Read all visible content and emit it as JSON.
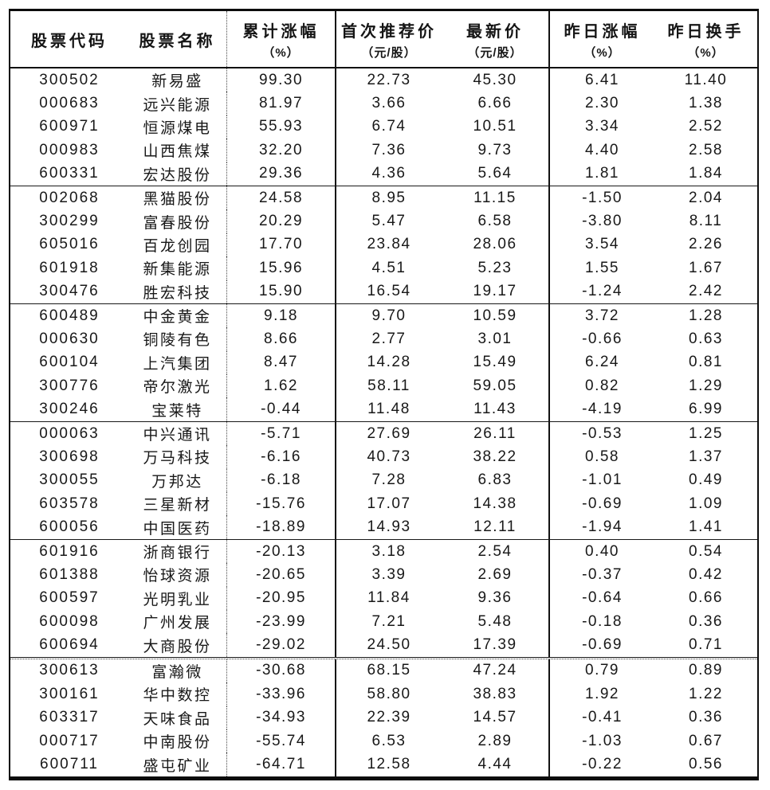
{
  "table": {
    "columns": [
      {
        "label": "股票代码",
        "unit": ""
      },
      {
        "label": "股票名称",
        "unit": ""
      },
      {
        "label": "累计涨幅",
        "unit": "（%）"
      },
      {
        "label": "首次推荐价",
        "unit": "（元/股）"
      },
      {
        "label": "最新价",
        "unit": "（元/股）"
      },
      {
        "label": "昨日涨幅",
        "unit": "（%）"
      },
      {
        "label": "昨日换手",
        "unit": "（%）"
      }
    ],
    "groups": [
      {
        "rows": [
          [
            "300502",
            "新易盛",
            "99.30",
            "22.73",
            "45.30",
            "6.41",
            "11.40"
          ],
          [
            "000683",
            "远兴能源",
            "81.97",
            "3.66",
            "6.66",
            "2.30",
            "1.38"
          ],
          [
            "600971",
            "恒源煤电",
            "55.93",
            "6.74",
            "10.51",
            "3.34",
            "2.52"
          ],
          [
            "000983",
            "山西焦煤",
            "32.20",
            "7.36",
            "9.73",
            "4.40",
            "2.58"
          ],
          [
            "600331",
            "宏达股份",
            "29.36",
            "4.36",
            "5.64",
            "1.81",
            "1.84"
          ]
        ]
      },
      {
        "rows": [
          [
            "002068",
            "黑猫股份",
            "24.58",
            "8.95",
            "11.15",
            "-1.50",
            "2.04"
          ],
          [
            "300299",
            "富春股份",
            "20.29",
            "5.47",
            "6.58",
            "-3.80",
            "8.11"
          ],
          [
            "605016",
            "百龙创园",
            "17.70",
            "23.84",
            "28.06",
            "3.54",
            "2.26"
          ],
          [
            "601918",
            "新集能源",
            "15.96",
            "4.51",
            "5.23",
            "1.55",
            "1.67"
          ],
          [
            "300476",
            "胜宏科技",
            "15.90",
            "16.54",
            "19.17",
            "-1.24",
            "2.42"
          ]
        ]
      },
      {
        "rows": [
          [
            "600489",
            "中金黄金",
            "9.18",
            "9.70",
            "10.59",
            "3.72",
            "1.28"
          ],
          [
            "000630",
            "铜陵有色",
            "8.66",
            "2.77",
            "3.01",
            "-0.66",
            "0.63"
          ],
          [
            "600104",
            "上汽集团",
            "8.47",
            "14.28",
            "15.49",
            "6.24",
            "0.81"
          ],
          [
            "300776",
            "帝尔激光",
            "1.62",
            "58.11",
            "59.05",
            "0.82",
            "1.29"
          ],
          [
            "300246",
            "宝莱特",
            "-0.44",
            "11.48",
            "11.43",
            "-4.19",
            "6.99"
          ]
        ]
      },
      {
        "rows": [
          [
            "000063",
            "中兴通讯",
            "-5.71",
            "27.69",
            "26.11",
            "-0.53",
            "1.25"
          ],
          [
            "300698",
            "万马科技",
            "-6.16",
            "40.73",
            "38.22",
            "0.58",
            "1.37"
          ],
          [
            "300055",
            "万邦达",
            "-6.18",
            "7.28",
            "6.83",
            "-1.01",
            "0.49"
          ],
          [
            "603578",
            "三星新材",
            "-15.76",
            "17.07",
            "14.38",
            "-0.69",
            "1.09"
          ],
          [
            "600056",
            "中国医药",
            "-18.89",
            "14.93",
            "12.11",
            "-1.94",
            "1.41"
          ]
        ]
      },
      {
        "rows": [
          [
            "601916",
            "浙商银行",
            "-20.13",
            "3.18",
            "2.54",
            "0.40",
            "0.54"
          ],
          [
            "601388",
            "怡球资源",
            "-20.65",
            "3.39",
            "2.69",
            "-0.37",
            "0.42"
          ],
          [
            "600597",
            "光明乳业",
            "-20.95",
            "11.84",
            "9.36",
            "-0.64",
            "0.66"
          ],
          [
            "600098",
            "广州发展",
            "-23.99",
            "7.21",
            "5.48",
            "-0.18",
            "0.36"
          ],
          [
            "600694",
            "大商股份",
            "-29.02",
            "24.50",
            "17.39",
            "-0.69",
            "0.71"
          ]
        ]
      },
      {
        "rows": [
          [
            "300613",
            "富瀚微",
            "-30.68",
            "68.15",
            "47.24",
            "0.79",
            "0.89"
          ],
          [
            "300161",
            "华中数控",
            "-33.96",
            "58.80",
            "38.83",
            "1.92",
            "1.22"
          ],
          [
            "603317",
            "天味食品",
            "-34.93",
            "22.39",
            "14.57",
            "-0.41",
            "0.36"
          ],
          [
            "000717",
            "中南股份",
            "-55.74",
            "6.53",
            "2.89",
            "-1.03",
            "0.67"
          ],
          [
            "600711",
            "盛屯矿业",
            "-64.71",
            "12.58",
            "4.44",
            "-0.22",
            "0.56"
          ]
        ]
      }
    ]
  }
}
